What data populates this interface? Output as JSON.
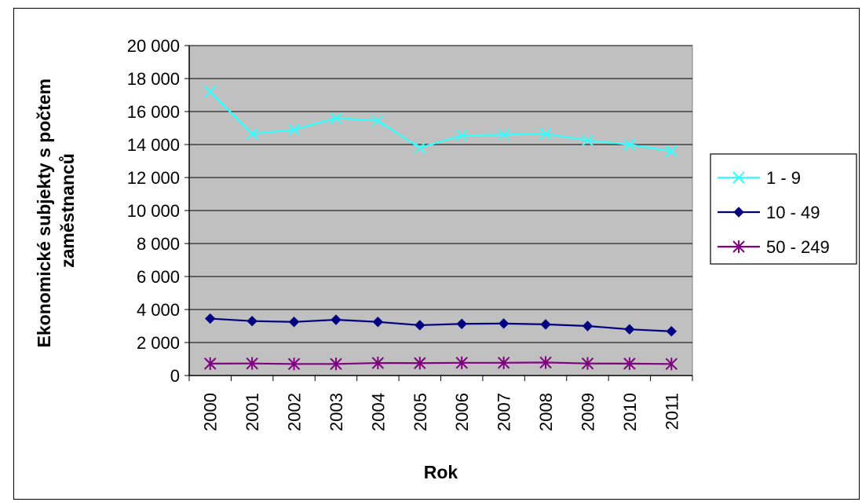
{
  "chart_data": {
    "type": "line",
    "title": "",
    "xlabel": "Rok",
    "ylabel_lines": [
      "Ekonomické subjekty s počtem",
      "zaměstnanců"
    ],
    "categories": [
      "2000",
      "2001",
      "2002",
      "2003",
      "2004",
      "2005",
      "2006",
      "2007",
      "2008",
      "2009",
      "2010",
      "2011"
    ],
    "ylim": [
      0,
      20000
    ],
    "yticks": [
      0,
      2000,
      4000,
      6000,
      8000,
      10000,
      12000,
      14000,
      16000,
      18000,
      20000
    ],
    "ytick_labels": [
      "0",
      "2 000",
      "4 000",
      "6 000",
      "8 000",
      "10 000",
      "12 000",
      "14 000",
      "16 000",
      "18 000",
      "20 000"
    ],
    "grid": true,
    "plot_background": "#c0c0c0",
    "legend_position": "right",
    "series": [
      {
        "name": "1 - 9",
        "color": "#33ffff",
        "marker": "x",
        "values": [
          17200,
          14650,
          14900,
          15600,
          15450,
          13800,
          14550,
          14600,
          14650,
          14250,
          14000,
          13600
        ]
      },
      {
        "name": "10 - 49",
        "color": "#000080",
        "marker": "diamond",
        "values": [
          3450,
          3300,
          3250,
          3380,
          3250,
          3050,
          3130,
          3150,
          3100,
          3000,
          2800,
          2680
        ]
      },
      {
        "name": "50 - 249",
        "color": "#800080",
        "marker": "asterisk",
        "values": [
          720,
          730,
          700,
          700,
          760,
          750,
          770,
          770,
          790,
          730,
          720,
          700
        ]
      }
    ]
  }
}
